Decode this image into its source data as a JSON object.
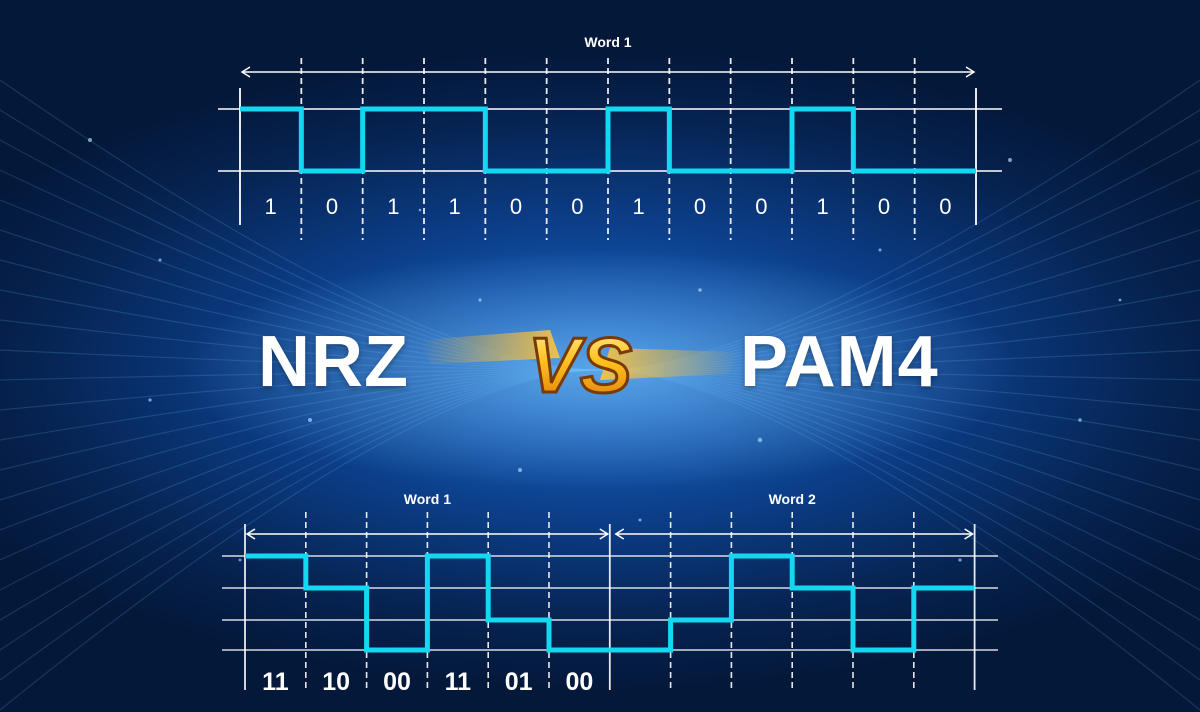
{
  "colors": {
    "background": "#0c3f8a",
    "signal": "#12d8f2",
    "grid": "#ffffff",
    "vs_gold": "#f6b21a"
  },
  "heading": {
    "left": "NRZ",
    "center": "VS",
    "right": "PAM4"
  },
  "nrz": {
    "word_label": "Word 1",
    "bits": [
      "1",
      "0",
      "1",
      "1",
      "0",
      "0",
      "1",
      "0",
      "0",
      "1",
      "0",
      "0"
    ]
  },
  "pam4": {
    "word1_label": "Word 1",
    "word2_label": "Word 2",
    "symbol_labels": [
      "11",
      "10",
      "00",
      "11",
      "01",
      "00"
    ],
    "levels": [
      3,
      2,
      0,
      3,
      1,
      0,
      0,
      1,
      3,
      2,
      0,
      2
    ],
    "level_count": 4
  }
}
